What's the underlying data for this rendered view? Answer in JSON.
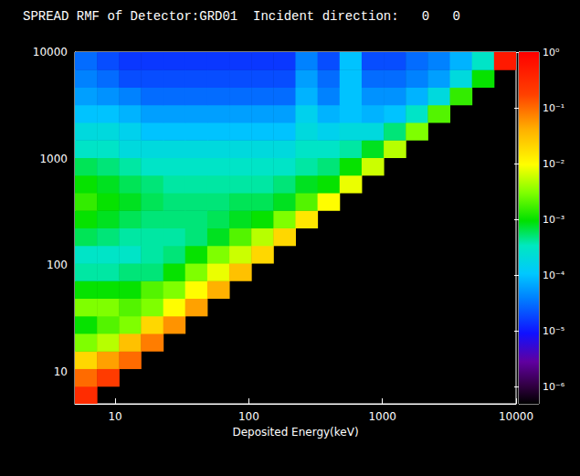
{
  "chart_data": {
    "type": "heatmap",
    "title": "SPREAD RMF of Detector:GRD01  Incident direction:   0   0",
    "x_label": "Deposited Energy(keV)",
    "log": true,
    "grid": false,
    "xlim": [
      5,
      10000
    ],
    "ylim": [
      5,
      10000
    ],
    "xticks": [
      10,
      100,
      1000,
      10000
    ],
    "yticks": [
      10,
      100,
      1000,
      10000
    ],
    "x_bins": [
      5,
      7.31,
      10.7,
      15.6,
      22.9,
      33.4,
      48.9,
      71.5,
      104.5,
      152.8,
      223.5,
      326.8,
      478,
      699,
      1022,
      1495,
      2186,
      3197,
      4675,
      6837,
      10000
    ],
    "y_bins": [
      5,
      7.31,
      10.7,
      15.6,
      22.9,
      33.4,
      48.9,
      71.5,
      104.5,
      152.8,
      223.5,
      326.8,
      478,
      699,
      1022,
      1495,
      2186,
      3197,
      4675,
      6837,
      10000
    ],
    "cells": [
      [
        0.3,
        null,
        null,
        null,
        null,
        null,
        null,
        null,
        null,
        null,
        null,
        null,
        null,
        null,
        null,
        null,
        null,
        null,
        null,
        null
      ],
      [
        0.1,
        0.2,
        null,
        null,
        null,
        null,
        null,
        null,
        null,
        null,
        null,
        null,
        null,
        null,
        null,
        null,
        null,
        null,
        null,
        null
      ],
      [
        0.02,
        0.05,
        0.1,
        null,
        null,
        null,
        null,
        null,
        null,
        null,
        null,
        null,
        null,
        null,
        null,
        null,
        null,
        null,
        null,
        null
      ],
      [
        0.003,
        0.005,
        0.03,
        0.08,
        null,
        null,
        null,
        null,
        null,
        null,
        null,
        null,
        null,
        null,
        null,
        null,
        null,
        null,
        null,
        null
      ],
      [
        0.001,
        0.002,
        0.003,
        0.02,
        0.06,
        null,
        null,
        null,
        null,
        null,
        null,
        null,
        null,
        null,
        null,
        null,
        null,
        null,
        null,
        null
      ],
      [
        0.003,
        0.003,
        0.002,
        0.003,
        0.01,
        0.05,
        null,
        null,
        null,
        null,
        null,
        null,
        null,
        null,
        null,
        null,
        null,
        null,
        null,
        null
      ],
      [
        0.001,
        0.001,
        0.001,
        0.002,
        0.003,
        0.01,
        0.04,
        null,
        null,
        null,
        null,
        null,
        null,
        null,
        null,
        null,
        null,
        null,
        null,
        null
      ],
      [
        0.0004,
        0.0004,
        0.0005,
        0.0005,
        0.001,
        0.003,
        0.008,
        0.03,
        null,
        null,
        null,
        null,
        null,
        null,
        null,
        null,
        null,
        null,
        null,
        null
      ],
      [
        0.0003,
        0.0003,
        0.0003,
        0.0004,
        0.0005,
        0.001,
        0.003,
        0.006,
        0.02,
        null,
        null,
        null,
        null,
        null,
        null,
        null,
        null,
        null,
        null,
        null
      ],
      [
        0.0006,
        0.0005,
        0.0004,
        0.0004,
        0.0004,
        0.0005,
        0.0008,
        0.002,
        0.005,
        0.02,
        null,
        null,
        null,
        null,
        null,
        null,
        null,
        null,
        null,
        null
      ],
      [
        0.001,
        0.0008,
        0.0006,
        0.0005,
        0.0005,
        0.0005,
        0.0006,
        0.0008,
        0.001,
        0.003,
        0.015,
        null,
        null,
        null,
        null,
        null,
        null,
        null,
        null,
        null
      ],
      [
        0.0015,
        0.001,
        0.0008,
        0.0006,
        0.0005,
        0.0005,
        0.0005,
        0.0006,
        0.0006,
        0.0008,
        0.002,
        0.01,
        null,
        null,
        null,
        null,
        null,
        null,
        null,
        null
      ],
      [
        0.001,
        0.0008,
        0.0006,
        0.0005,
        0.0004,
        0.0004,
        0.0004,
        0.0004,
        0.0004,
        0.0005,
        0.0008,
        0.001,
        0.008,
        null,
        null,
        null,
        null,
        null,
        null,
        null
      ],
      [
        0.0006,
        0.0005,
        0.0004,
        0.0003,
        0.0003,
        0.0003,
        0.0003,
        0.0003,
        0.0003,
        0.0003,
        0.0004,
        0.0005,
        0.001,
        0.006,
        null,
        null,
        null,
        null,
        null,
        null
      ],
      [
        0.0003,
        0.0003,
        0.0002,
        0.0002,
        0.0002,
        0.0002,
        0.0002,
        0.0002,
        0.0002,
        0.0002,
        0.0003,
        0.0003,
        0.0004,
        0.0008,
        0.005,
        null,
        null,
        null,
        null,
        null
      ],
      [
        0.0002,
        0.0002,
        0.00015,
        0.0001,
        0.0001,
        0.0001,
        0.0001,
        0.0001,
        0.0001,
        0.0001,
        0.0002,
        0.00015,
        0.0002,
        0.0002,
        0.0005,
        0.003,
        null,
        null,
        null,
        null
      ],
      [
        0.0001,
        0.0001,
        8e-05,
        6e-05,
        6e-05,
        6e-05,
        6e-05,
        6e-05,
        6e-05,
        6e-05,
        0.00015,
        8e-05,
        0.0001,
        8e-05,
        0.0001,
        0.0003,
        0.002,
        null,
        null,
        null
      ],
      [
        6e-05,
        5e-05,
        4e-05,
        3e-05,
        3e-05,
        3e-05,
        3e-05,
        3e-05,
        3e-05,
        3e-05,
        8e-05,
        4e-05,
        0.0001,
        5e-05,
        5e-05,
        8e-05,
        0.0002,
        0.0015,
        null,
        null
      ],
      [
        4e-05,
        3e-05,
        2e-05,
        2e-05,
        2e-05,
        2e-05,
        2e-05,
        2e-05,
        2e-05,
        2e-05,
        6e-05,
        3e-05,
        0.0001,
        3e-05,
        3e-05,
        4e-05,
        6e-05,
        0.0002,
        0.001,
        null
      ],
      [
        3e-05,
        2e-05,
        1.5e-05,
        1.5e-05,
        1.5e-05,
        1.5e-05,
        1.5e-05,
        1.5e-05,
        1.5e-05,
        1.5e-05,
        4e-05,
        2e-05,
        0.0001,
        2e-05,
        2e-05,
        3e-05,
        4e-05,
        8e-05,
        0.0003,
        0.5
      ]
    ],
    "colorbar": {
      "range": [
        5e-07,
        1
      ],
      "ticks": [
        {
          "value": 1,
          "label": "10⁰"
        },
        {
          "value": 0.1,
          "label": "10⁻¹"
        },
        {
          "value": 0.01,
          "label": "10⁻²"
        },
        {
          "value": 0.001,
          "label": "10⁻³"
        },
        {
          "value": 0.0001,
          "label": "10⁻⁴"
        },
        {
          "value": 1e-05,
          "label": "10⁻⁵"
        },
        {
          "value": 1e-06,
          "label": "10⁻⁶"
        }
      ]
    }
  }
}
